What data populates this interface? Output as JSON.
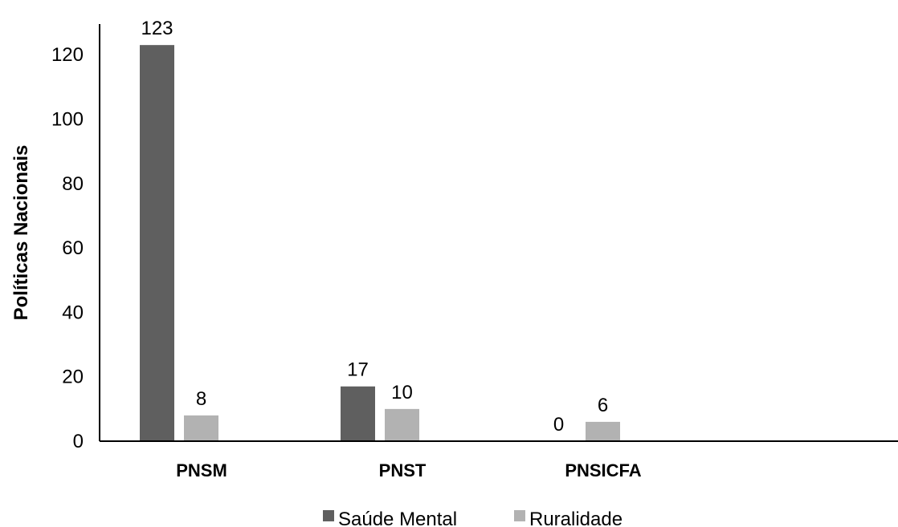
{
  "chart_data": {
    "type": "bar",
    "title": "",
    "xlabel": "",
    "ylabel": "Políticas Nacionais",
    "ylim": [
      0,
      130
    ],
    "yticks": [
      0,
      20,
      40,
      60,
      80,
      100,
      120
    ],
    "categories": [
      "PNSM",
      "PNST",
      "PNSICFA"
    ],
    "series": [
      {
        "name": "Saúde Mental",
        "color": "#5f5f5f",
        "values": [
          123,
          17,
          0
        ]
      },
      {
        "name": "Ruralidade",
        "color": "#b2b2b2",
        "values": [
          8,
          10,
          6
        ]
      }
    ],
    "grid": false,
    "legend_position": "bottom"
  }
}
